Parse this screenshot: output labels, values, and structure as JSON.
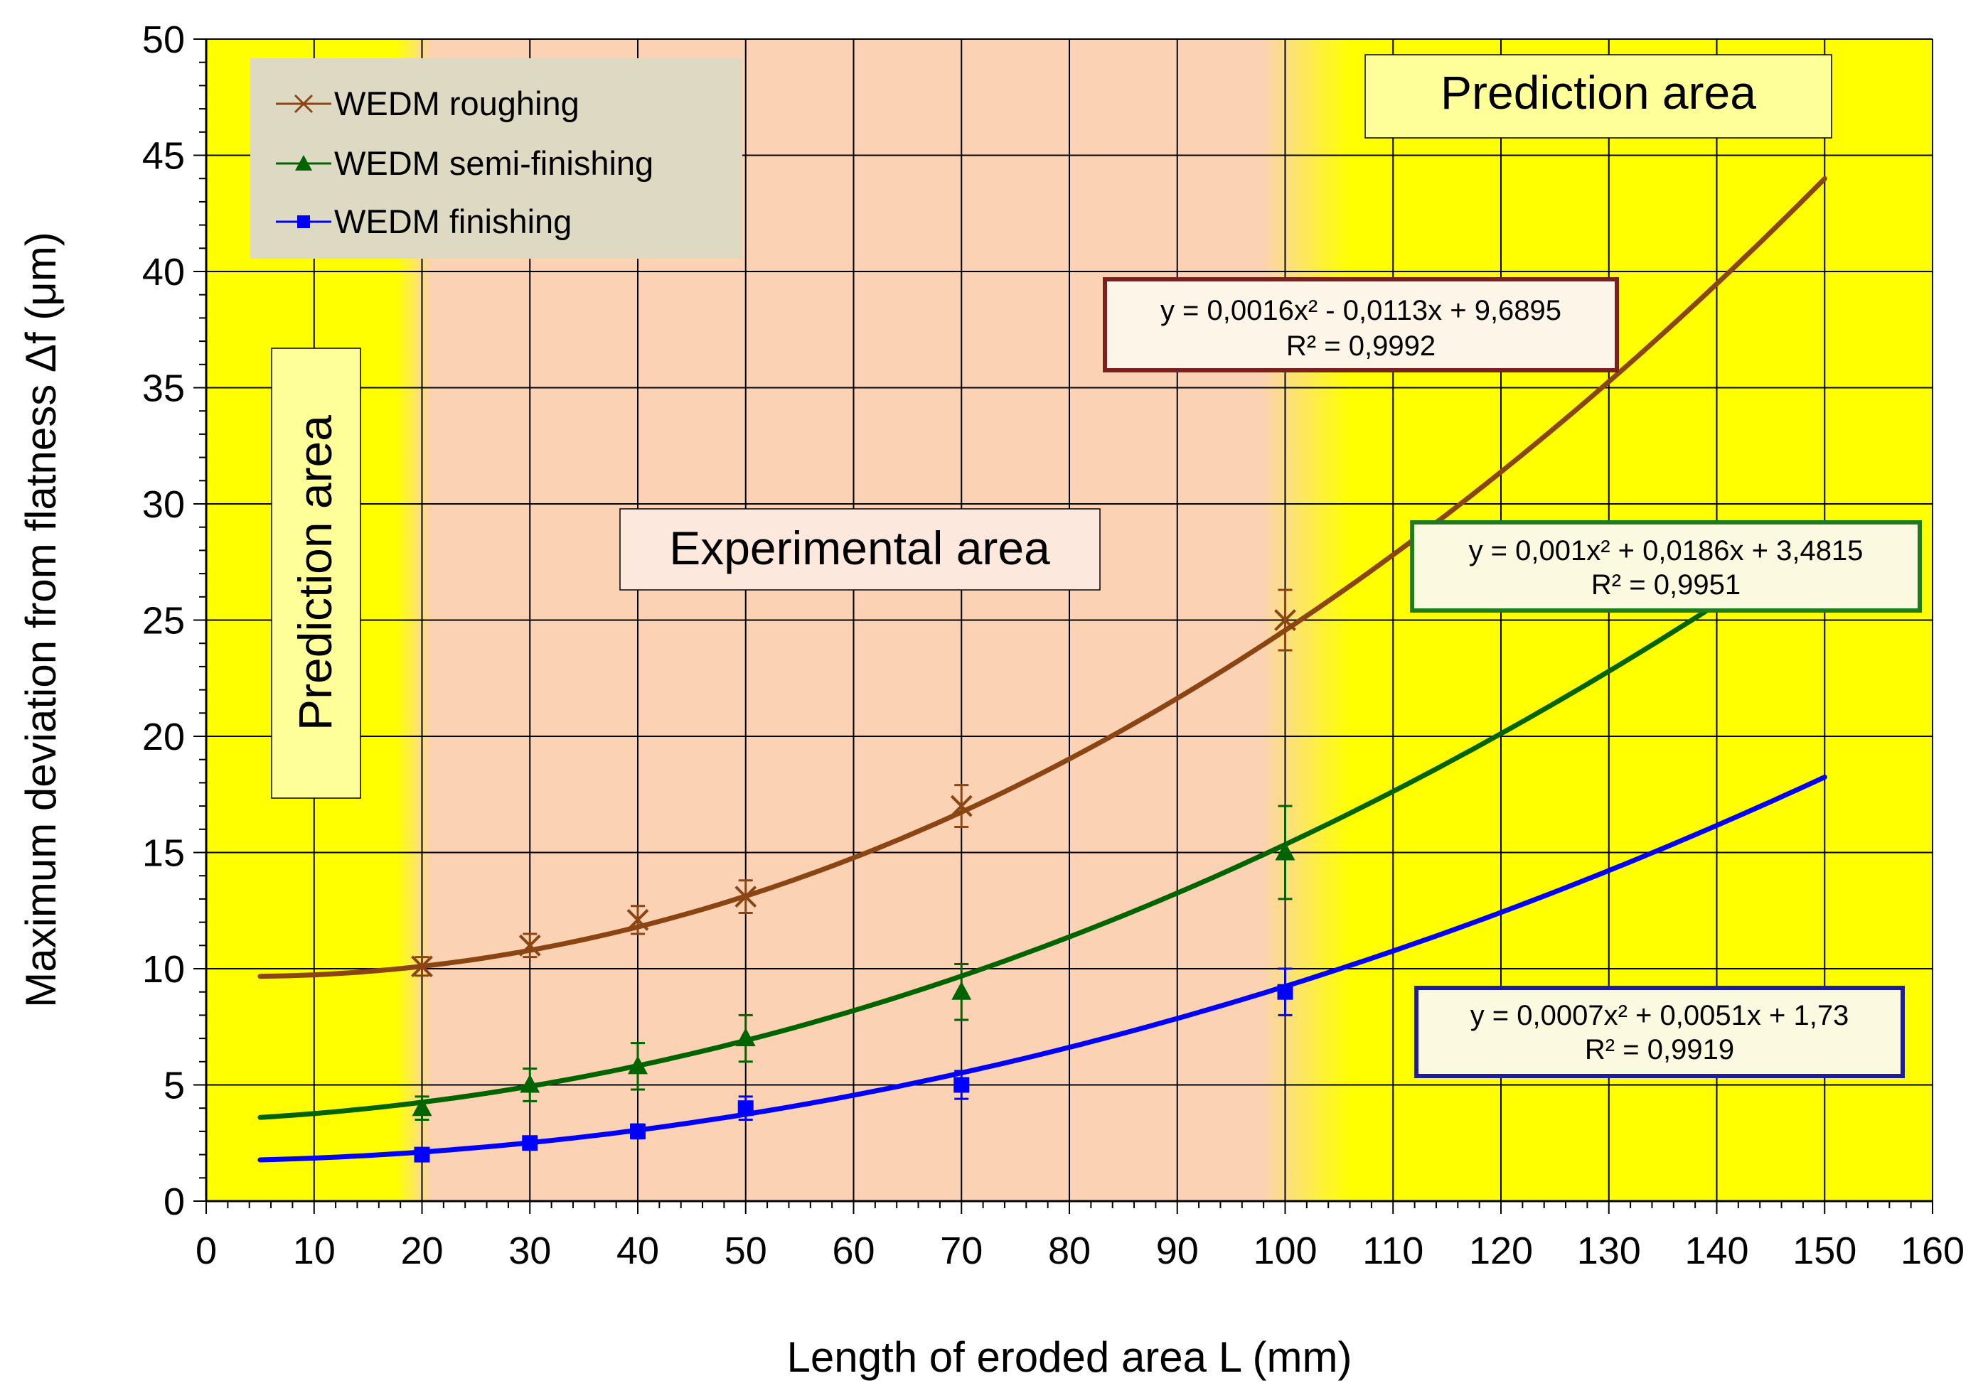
{
  "chart_data": {
    "type": "line",
    "xlabel": "Length of eroded area L (mm)",
    "ylabel": "Maximum deviation from flatness   Δf (μm)",
    "xlim": [
      0,
      160
    ],
    "ylim": [
      0,
      50
    ],
    "xticks": [
      "0",
      "10",
      "20",
      "30",
      "40",
      "50",
      "60",
      "70",
      "80",
      "90",
      "100",
      "110",
      "120",
      "130",
      "140",
      "150",
      "160"
    ],
    "yticks": [
      "0",
      "5",
      "10",
      "15",
      "20",
      "25",
      "30",
      "35",
      "40",
      "45",
      "50"
    ],
    "grid": true,
    "legend_position": "top-left",
    "regions": [
      {
        "label": "Prediction  area",
        "x_from": 0,
        "x_to": 20,
        "color": "#ffff00"
      },
      {
        "label": "Experimental area",
        "x_from": 20,
        "x_to": 100,
        "color": "#fbd2b4"
      },
      {
        "label": "Prediction area",
        "x_from": 100,
        "x_to": 160,
        "color": "#ffff00"
      }
    ],
    "series": [
      {
        "name": "WEDM roughing",
        "marker": "x",
        "color": "#8b4513",
        "x": [
          20,
          30,
          40,
          50,
          70,
          100
        ],
        "values": [
          10.1,
          11.0,
          12.1,
          13.1,
          17.0,
          25.0
        ],
        "error": [
          0.4,
          0.5,
          0.6,
          0.7,
          0.9,
          1.3
        ],
        "fit": {
          "a": 0.0016,
          "b": -0.0113,
          "c": 9.6895,
          "x_range": [
            5,
            150
          ]
        },
        "equation": "y = 0,0016x² - 0,0113x + 9,6895",
        "r2": "R² = 0,9992"
      },
      {
        "name": "WEDM semi-finishing",
        "marker": "triangle",
        "color": "#006400",
        "x": [
          20,
          30,
          40,
          50,
          70,
          100
        ],
        "values": [
          4.0,
          5.0,
          5.8,
          7.0,
          9.0,
          15.0
        ],
        "error": [
          0.5,
          0.7,
          1.0,
          1.0,
          1.2,
          2.0
        ],
        "fit": {
          "a": 0.001,
          "b": 0.0186,
          "c": 3.4815,
          "x_range": [
            5,
            150
          ]
        },
        "equation": "y = 0,001x² + 0,0186x + 3,4815",
        "r2": "R² = 0,9951"
      },
      {
        "name": "WEDM finishing",
        "marker": "square",
        "color": "#0000ff",
        "x": [
          20,
          30,
          40,
          50,
          70,
          100
        ],
        "values": [
          2.0,
          2.5,
          3.0,
          4.0,
          5.0,
          9.0
        ],
        "error": [
          0.2,
          0.2,
          0.3,
          0.5,
          0.6,
          1.0
        ],
        "fit": {
          "a": 0.0007,
          "b": 0.0051,
          "c": 1.73,
          "x_range": [
            5,
            150
          ]
        },
        "equation": "y = 0,0007x² + 0,0051x + 1,73",
        "r2": "R² = 0,9919"
      }
    ]
  }
}
